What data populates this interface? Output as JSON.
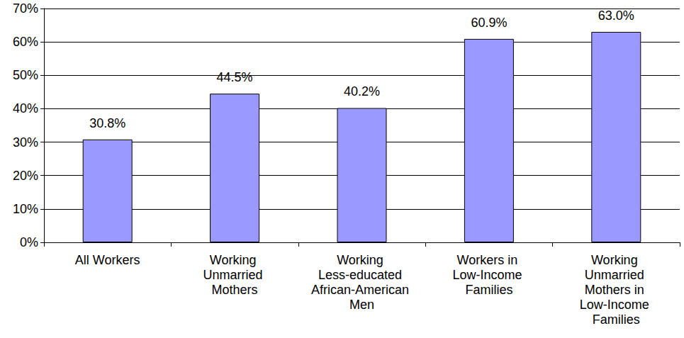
{
  "chart_data": {
    "type": "bar",
    "categories": [
      "All Workers",
      "Working Unmarried Mothers",
      "Working Less-educated African-American Men",
      "Workers in Low-Income Families",
      "Working Unmarried Mothers in Low-Income Families"
    ],
    "values": [
      30.8,
      44.5,
      40.2,
      60.9,
      63.0
    ],
    "value_labels": [
      "30.8%",
      "44.5%",
      "40.2%",
      "60.9%",
      "63.0%"
    ],
    "color": "#9999ff",
    "ylim": [
      0,
      70
    ],
    "yticks": [
      {
        "value": 0,
        "label": "0%"
      },
      {
        "value": 10,
        "label": "10%"
      },
      {
        "value": 20,
        "label": "20%"
      },
      {
        "value": 30,
        "label": "30%"
      },
      {
        "value": 40,
        "label": "40%"
      },
      {
        "value": 50,
        "label": "50%"
      },
      {
        "value": 60,
        "label": "60%"
      },
      {
        "value": 70,
        "label": "70%"
      }
    ],
    "grid": true,
    "data_labels": true
  }
}
